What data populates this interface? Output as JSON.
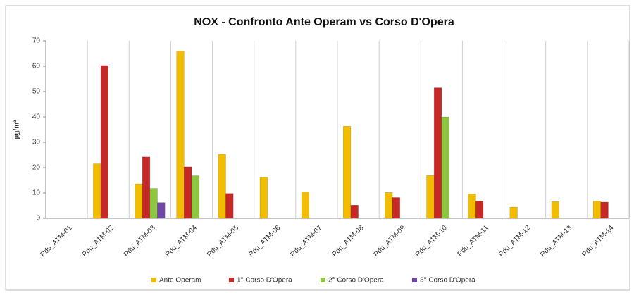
{
  "chart_data": {
    "type": "bar",
    "title": "NOX - Confronto Ante Operam vs Corso D'Opera",
    "y_label": "µg/m³",
    "categories": [
      "Pdu_ATM-01",
      "Pdu_ATM-02",
      "Pdu_ATM-03",
      "Pdu_ATM-04",
      "Pdu_ATM-05",
      "Pdu_ATM-06",
      "Pdu_ATM-07",
      "Pdu_ATM-08",
      "Pdu_ATM-09",
      "Pdu_ATM-10",
      "Pdu_ATM-11",
      "Pdu_ATM-12",
      "Pdu_ATM-13",
      "Pdu_ATM-14"
    ],
    "series": [
      {
        "name": "Ante Operam",
        "color": "#f2bd00",
        "values": [
          null,
          21.5,
          13.6,
          66,
          25.3,
          16.2,
          10.4,
          36.3,
          10.2,
          16.9,
          9.6,
          4.4,
          6.6,
          6.8
        ]
      },
      {
        "name": "1° Corso D'Opera",
        "color": "#c62828",
        "values": [
          null,
          60.3,
          24.2,
          20.3,
          9.8,
          null,
          null,
          5.2,
          8.2,
          51.5,
          6.8,
          null,
          null,
          6.4
        ]
      },
      {
        "name": "2° Corso D'Opera",
        "color": "#8dc63f",
        "values": [
          null,
          null,
          11.8,
          16.8,
          null,
          null,
          null,
          null,
          null,
          40,
          null,
          null,
          null,
          null
        ]
      },
      {
        "name": "3° Corso D'Opera",
        "color": "#7048a8",
        "values": [
          null,
          null,
          6.2,
          null,
          null,
          null,
          null,
          null,
          null,
          null,
          null,
          null,
          null,
          null
        ]
      }
    ],
    "ylim": [
      0,
      70
    ],
    "yticks": [
      0,
      10,
      20,
      30,
      40,
      50,
      60,
      70
    ],
    "grid": true,
    "legend": "bottom"
  }
}
